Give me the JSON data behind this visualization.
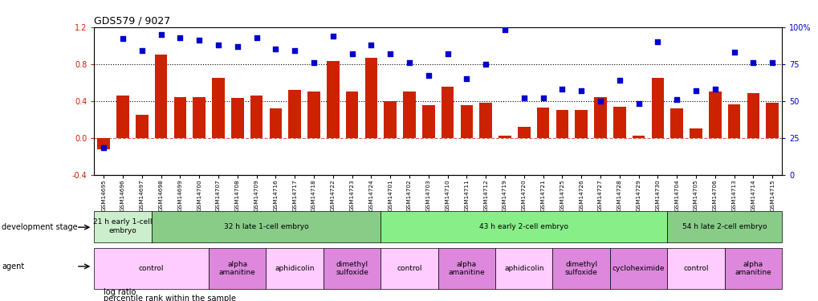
{
  "title": "GDS579 / 9027",
  "samples": [
    "GSM14695",
    "GSM14696",
    "GSM14697",
    "GSM14698",
    "GSM14699",
    "GSM14700",
    "GSM14707",
    "GSM14708",
    "GSM14709",
    "GSM14716",
    "GSM14717",
    "GSM14718",
    "GSM14722",
    "GSM14723",
    "GSM14724",
    "GSM14701",
    "GSM14702",
    "GSM14703",
    "GSM14710",
    "GSM14711",
    "GSM14712",
    "GSM14719",
    "GSM14720",
    "GSM14721",
    "GSM14725",
    "GSM14726",
    "GSM14727",
    "GSM14728",
    "GSM14729",
    "GSM14730",
    "GSM14704",
    "GSM14705",
    "GSM14706",
    "GSM14713",
    "GSM14714",
    "GSM14715"
  ],
  "log_ratio": [
    -0.13,
    0.46,
    0.25,
    0.9,
    0.44,
    0.44,
    0.65,
    0.43,
    0.46,
    0.32,
    0.52,
    0.5,
    0.83,
    0.5,
    0.87,
    0.4,
    0.5,
    0.35,
    0.55,
    0.35,
    0.38,
    0.02,
    0.12,
    0.33,
    0.3,
    0.3,
    0.44,
    0.34,
    0.02,
    0.65,
    0.32,
    0.1,
    0.5,
    0.36,
    0.48,
    0.38
  ],
  "percentile": [
    18,
    92,
    84,
    95,
    93,
    91,
    88,
    87,
    93,
    85,
    84,
    76,
    94,
    82,
    88,
    82,
    76,
    67,
    82,
    65,
    75,
    98,
    52,
    52,
    58,
    57,
    50,
    64,
    48,
    90,
    51,
    57,
    58,
    83,
    76,
    76
  ],
  "bar_color": "#cc2200",
  "dot_color": "#0000cc",
  "bar_width": 0.65,
  "ylim_left": [
    -0.4,
    1.2
  ],
  "ylim_right": [
    0,
    100
  ],
  "yticks_left": [
    -0.4,
    0.0,
    0.4,
    0.8,
    1.2
  ],
  "yticks_right": [
    0,
    25,
    50,
    75,
    100
  ],
  "hline_y_dotted": [
    0.4,
    0.8
  ],
  "hline_y_dash": [
    0.0
  ],
  "zero_line_color": "#cc2200",
  "dotted_line_color": "#000000",
  "dev_stages": [
    {
      "label": "21 h early 1-cell\nembryо",
      "start": 0,
      "end": 3,
      "color": "#cceecc"
    },
    {
      "label": "32 h late 1-cell embryo",
      "start": 3,
      "end": 15,
      "color": "#88cc88"
    },
    {
      "label": "43 h early 2-cell embryo",
      "start": 15,
      "end": 30,
      "color": "#88ee88"
    },
    {
      "label": "54 h late 2-cell embryo",
      "start": 30,
      "end": 36,
      "color": "#88cc88"
    }
  ],
  "agents": [
    {
      "label": "control",
      "start": 0,
      "end": 6,
      "color": "#ffccff"
    },
    {
      "label": "alpha\namanitine",
      "start": 6,
      "end": 9,
      "color": "#dd88dd"
    },
    {
      "label": "aphidicolin",
      "start": 9,
      "end": 12,
      "color": "#ffccff"
    },
    {
      "label": "dimethyl\nsulfoxide",
      "start": 12,
      "end": 15,
      "color": "#dd88dd"
    },
    {
      "label": "control",
      "start": 15,
      "end": 18,
      "color": "#ffccff"
    },
    {
      "label": "alpha\namanitine",
      "start": 18,
      "end": 21,
      "color": "#dd88dd"
    },
    {
      "label": "aphidicolin",
      "start": 21,
      "end": 24,
      "color": "#ffccff"
    },
    {
      "label": "dimethyl\nsulfoxide",
      "start": 24,
      "end": 27,
      "color": "#dd88dd"
    },
    {
      "label": "cycloheximide",
      "start": 27,
      "end": 30,
      "color": "#dd88dd"
    },
    {
      "label": "control",
      "start": 30,
      "end": 33,
      "color": "#ffccff"
    },
    {
      "label": "alpha\namanitine",
      "start": 33,
      "end": 36,
      "color": "#dd88dd"
    }
  ]
}
